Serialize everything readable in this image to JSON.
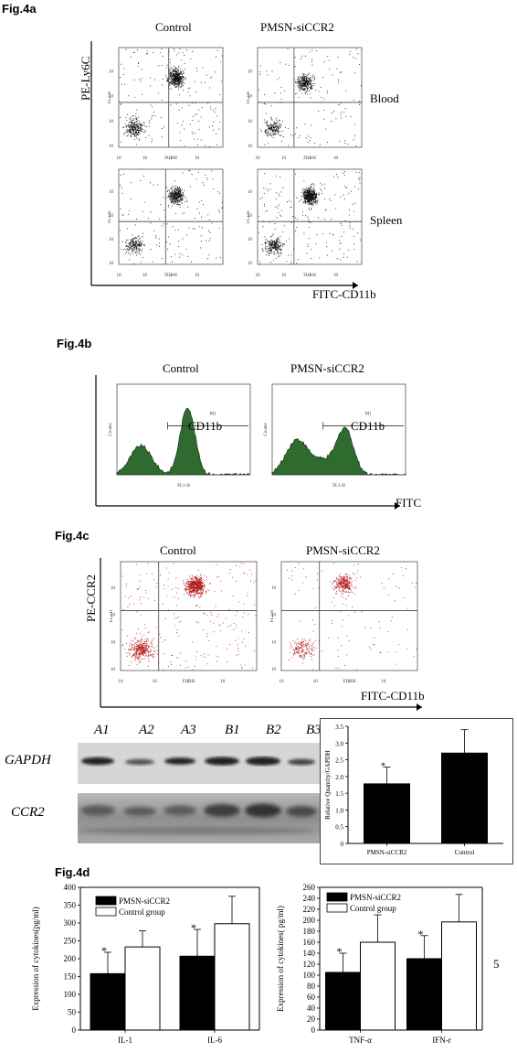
{
  "fig4a": {
    "label": "Fig.4a",
    "col_titles": [
      "Control",
      "PMSN-siCCR2"
    ],
    "row_labels": [
      "Blood",
      "Spleen"
    ],
    "y_axis_label": "PE-Ly6C",
    "x_axis_label": "FITC-CD11b",
    "panel_x_label": "FL1-H",
    "panel_y_label": "FL2-H",
    "tick_labels": [
      "10⁰",
      "10¹",
      "10²",
      "10³",
      "10⁴"
    ]
  },
  "fig4b": {
    "label": "Fig.4b",
    "col_titles": [
      "Control",
      "PMSN-siCCR2"
    ],
    "gate_label": "CD11b",
    "marker_label": "M1",
    "panel_x_label": "FL1-H",
    "panel_y_label": "Counts",
    "x_axis_label": "FITC"
  },
  "fig4c": {
    "label": "Fig.4c",
    "col_titles": [
      "Control",
      "PMSN-siCCR2"
    ],
    "y_axis_label": "PE-CCR2",
    "x_axis_label": "FITC-CD11b",
    "panel_x_label": "FL1-H",
    "panel_y_label": "FL2-H"
  },
  "blot": {
    "lane_labels": [
      "A1",
      "A2",
      "A3",
      "B1",
      "B2",
      "B3"
    ],
    "row_labels": [
      "GAPDH",
      "CCR2"
    ]
  },
  "chart_data": [
    {
      "type": "bar",
      "ylabel": "Relative Quantity/GAPDH",
      "categories": [
        "PMSN-siCCR2",
        "Control"
      ],
      "values": [
        1.78,
        2.7
      ],
      "errors": [
        0.5,
        0.7
      ],
      "significance": [
        "*",
        ""
      ],
      "ylim": [
        0,
        3.5
      ],
      "yticks": [
        "0",
        "0.5",
        "1.0",
        "1.5",
        "2.0",
        "2.5",
        "3.0",
        "3.5"
      ],
      "colors": [
        "#000000",
        "#000000"
      ]
    },
    {
      "type": "bar",
      "ylabel": "Expression of cytokines(pg/ml)",
      "categories": [
        "IL-1",
        "IL-6"
      ],
      "series": [
        {
          "name": "PMSN-siCCR2",
          "values": [
            158,
            207
          ],
          "errors": [
            60,
            75
          ],
          "significance": [
            "*",
            "*"
          ],
          "color": "#000000"
        },
        {
          "name": "Control group",
          "values": [
            233,
            298
          ],
          "errors": [
            45,
            77
          ],
          "significance": [
            "",
            ""
          ],
          "color": "#ffffff"
        }
      ],
      "ylim": [
        0,
        400
      ],
      "yticks": [
        "0",
        "50",
        "100",
        "150",
        "200",
        "250",
        "300",
        "350",
        "400"
      ]
    },
    {
      "type": "bar",
      "ylabel": "Expression of cytokines( pg/ml)",
      "categories": [
        "TNF-α",
        "IFN-r"
      ],
      "series": [
        {
          "name": "PMSN-siCCR2",
          "values": [
            105,
            130
          ],
          "errors": [
            35,
            42
          ],
          "significance": [
            "*",
            "*"
          ],
          "color": "#000000"
        },
        {
          "name": "Control group",
          "values": [
            160,
            197
          ],
          "errors": [
            50,
            50
          ],
          "significance": [
            "",
            ""
          ],
          "color": "#ffffff"
        }
      ],
      "ylim": [
        0,
        260
      ],
      "yticks": [
        "0",
        "20",
        "40",
        "60",
        "80",
        "100",
        "120",
        "140",
        "160",
        "180",
        "200",
        "220",
        "240",
        "260"
      ]
    }
  ],
  "fig4d": {
    "label": "Fig.4d",
    "page_number": "5"
  }
}
